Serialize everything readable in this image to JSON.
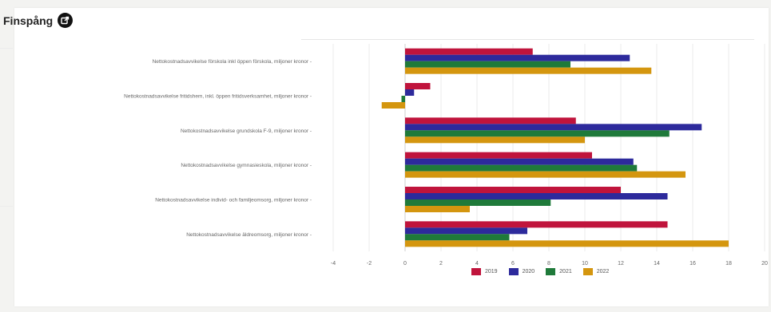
{
  "header": {
    "title": "Finspång",
    "icon": "external-link-icon"
  },
  "chart_data": {
    "type": "bar",
    "orientation": "horizontal",
    "categories": [
      "Nettokostnadsavvikelse förskola inkl öppen förskola, miljoner kronor",
      "Nettokostnadsavvikelse fritidshem, inkl. öppen fritidsverksamhet, miljoner kronor",
      "Nettokostnadsavvikelse grundskola F-9, miljoner kronor",
      "Nettokostnadsavvikelse gymnasieskola, miljoner kronor",
      "Nettokostnadsavvikelse individ- och familjeomsorg, miljoner kronor",
      "Nettokostnadsavvikelse äldreomsorg, miljoner kronor"
    ],
    "series": [
      {
        "name": "2019",
        "color": "#c0143c",
        "values": [
          7.1,
          1.4,
          9.5,
          10.4,
          12.0,
          14.6
        ]
      },
      {
        "name": "2020",
        "color": "#2d2a9c",
        "values": [
          12.5,
          0.5,
          16.5,
          12.7,
          14.6,
          6.8
        ]
      },
      {
        "name": "2021",
        "color": "#1f7a3a",
        "values": [
          9.2,
          -0.2,
          14.7,
          12.9,
          8.1,
          5.8
        ]
      },
      {
        "name": "2022",
        "color": "#d4960f",
        "values": [
          13.7,
          -1.3,
          10.0,
          15.6,
          3.6,
          18.0
        ]
      }
    ],
    "xlim": [
      -4,
      20
    ],
    "xticks": [
      "-4",
      "-2",
      "0",
      "2",
      "4",
      "6",
      "8",
      "10",
      "12",
      "14",
      "16",
      "18",
      "20"
    ],
    "grid": true,
    "legend_position": "bottom"
  }
}
